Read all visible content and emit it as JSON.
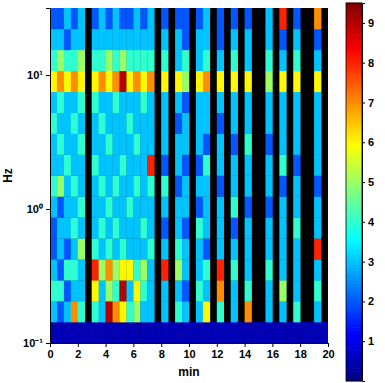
{
  "chart_data": {
    "type": "heatmap",
    "xlabel": "min",
    "ylabel": "Hz",
    "log": "y",
    "xlim": [
      0,
      20
    ],
    "xticks": [
      0,
      2,
      4,
      6,
      8,
      10,
      12,
      14,
      16,
      18,
      20
    ],
    "ylim": [
      0.1,
      31.623
    ],
    "yticks": [
      {
        "value": 0.1,
        "label": "10⁻¹"
      },
      {
        "value": 1,
        "label": "10⁰"
      },
      {
        "value": 10,
        "label": "10¹"
      }
    ],
    "x_bins": [
      0,
      0.5,
      1,
      1.5,
      2,
      2.5,
      3,
      3.5,
      4,
      4.5,
      5,
      5.5,
      6,
      6.5,
      7,
      7.5,
      8,
      8.5,
      9,
      9.5,
      10,
      10.5,
      11,
      11.5,
      12,
      12.5,
      13,
      13.5,
      14,
      14.5,
      15,
      15.5,
      16,
      16.5,
      17,
      17.5,
      18,
      18.5,
      19,
      19.5,
      20
    ],
    "y_bins": [
      0.1,
      0.1433,
      0.2054,
      0.2943,
      0.4217,
      0.6043,
      0.866,
      1.2409,
      1.7783,
      2.5483,
      3.6517,
      5.233,
      7.4989,
      10.746,
      15.399,
      22.067,
      31.623
    ],
    "values": [
      [
        0.5,
        3,
        4,
        3,
        2,
        2,
        3,
        4,
        3,
        3,
        4,
        3,
        6,
        4,
        3,
        2
      ],
      [
        0.5,
        2,
        4,
        2,
        3,
        3,
        2,
        5,
        3,
        4,
        3,
        4,
        7,
        5,
        3,
        2
      ],
      [
        0.5,
        3,
        2,
        4,
        2,
        3,
        3,
        3,
        4,
        3,
        3,
        3,
        6,
        4,
        2,
        3
      ],
      [
        0.5,
        7,
        3,
        4,
        3,
        4,
        3,
        4,
        3,
        3,
        4,
        3,
        7,
        4,
        3,
        2
      ],
      [
        0.5,
        4,
        3,
        3,
        5,
        3,
        4,
        3,
        3,
        4,
        3,
        4,
        6,
        5,
        3,
        3
      ],
      [
        0.5,
        null,
        null,
        null,
        null,
        null,
        null,
        null,
        null,
        null,
        null,
        null,
        null,
        null,
        null,
        null
      ],
      [
        0.5,
        4,
        6,
        8,
        4,
        3,
        3,
        3,
        4,
        3,
        3,
        4,
        6,
        4,
        3,
        2
      ],
      [
        0.5,
        3,
        3,
        5,
        3,
        4,
        3,
        4,
        3,
        3,
        4,
        3,
        7,
        4,
        3,
        3
      ],
      [
        0.5,
        9,
        5,
        7,
        4,
        3,
        4,
        3,
        3,
        4,
        3,
        3,
        6,
        5,
        3,
        2
      ],
      [
        0.5,
        7,
        4,
        5,
        3,
        4,
        3,
        4,
        3,
        3,
        3,
        4,
        7,
        4,
        3,
        3
      ],
      [
        0.5,
        6,
        9,
        6,
        4,
        3,
        3,
        3,
        4,
        3,
        3,
        3,
        9,
        5,
        3,
        2
      ],
      [
        0.5,
        4,
        3,
        6,
        3,
        3,
        4,
        3,
        3,
        3,
        4,
        3,
        6,
        4,
        3,
        2
      ],
      [
        0.5,
        5,
        6,
        4,
        3,
        3,
        3,
        4,
        3,
        4,
        3,
        3,
        7,
        4,
        3,
        3
      ],
      [
        0.5,
        3,
        4,
        5,
        3,
        4,
        3,
        3,
        3,
        3,
        3,
        4,
        6,
        4,
        3,
        2
      ],
      [
        0.5,
        3,
        3,
        3,
        4,
        3,
        3,
        4,
        8,
        3,
        3,
        3,
        7,
        4,
        3,
        3
      ],
      [
        0.5,
        null,
        null,
        null,
        null,
        null,
        null,
        null,
        null,
        null,
        null,
        null,
        null,
        null,
        null,
        null
      ],
      [
        0.5,
        3,
        3,
        8,
        3,
        2,
        3,
        4,
        2,
        3,
        3,
        3,
        6,
        4,
        3,
        2
      ],
      [
        0.5,
        null,
        null,
        null,
        null,
        null,
        null,
        null,
        null,
        null,
        null,
        null,
        null,
        null,
        null,
        null
      ],
      [
        0.5,
        4,
        3,
        5,
        4,
        3,
        3,
        2,
        3,
        3,
        2,
        3,
        6,
        3,
        3,
        2
      ],
      [
        0.5,
        3,
        2,
        3,
        3,
        2,
        3,
        3,
        2,
        3,
        3,
        2,
        5,
        4,
        2,
        2
      ],
      [
        0.5,
        null,
        null,
        null,
        null,
        null,
        null,
        null,
        null,
        null,
        null,
        null,
        null,
        null,
        null,
        null
      ],
      [
        0.5,
        3,
        4,
        3,
        3,
        4,
        2,
        3,
        2,
        3,
        3,
        3,
        6,
        3,
        3,
        2
      ],
      [
        0.5,
        6,
        3,
        4,
        2,
        3,
        3,
        3,
        4,
        2,
        3,
        3,
        7,
        4,
        3,
        3
      ],
      [
        0.5,
        null,
        null,
        null,
        null,
        null,
        null,
        null,
        null,
        null,
        null,
        null,
        null,
        null,
        null,
        null
      ],
      [
        0.5,
        4,
        7,
        8,
        3,
        3,
        3,
        2,
        3,
        3,
        2,
        3,
        6,
        3,
        2,
        2
      ],
      [
        0.5,
        null,
        null,
        null,
        null,
        null,
        null,
        null,
        null,
        null,
        null,
        null,
        null,
        null,
        null,
        null
      ],
      [
        0.5,
        3,
        3,
        4,
        3,
        2,
        4,
        3,
        3,
        2,
        3,
        3,
        6,
        4,
        3,
        2
      ],
      [
        0.5,
        null,
        null,
        null,
        null,
        null,
        null,
        null,
        null,
        null,
        null,
        null,
        null,
        null,
        null,
        null
      ],
      [
        0.5,
        7,
        4,
        3,
        3,
        3,
        2,
        3,
        3,
        4,
        3,
        3,
        6,
        3,
        3,
        2
      ],
      [
        0.5,
        null,
        null,
        null,
        null,
        null,
        null,
        null,
        null,
        null,
        null,
        null,
        null,
        null,
        null,
        null
      ],
      [
        0.5,
        null,
        null,
        null,
        null,
        null,
        null,
        null,
        null,
        null,
        null,
        null,
        null,
        null,
        null,
        null
      ],
      [
        0.5,
        3,
        3,
        4,
        3,
        3,
        2,
        3,
        3,
        2,
        3,
        3,
        5,
        4,
        3,
        3
      ],
      [
        0.5,
        null,
        null,
        null,
        null,
        null,
        null,
        null,
        null,
        null,
        null,
        null,
        null,
        null,
        null,
        null
      ],
      [
        0.5,
        3,
        5,
        3,
        3,
        3,
        3,
        2,
        4,
        3,
        3,
        3,
        6,
        3,
        2,
        8
      ],
      [
        0.5,
        null,
        null,
        null,
        null,
        null,
        null,
        null,
        null,
        null,
        null,
        null,
        null,
        null,
        null,
        null
      ],
      [
        0.5,
        4,
        3,
        3,
        3,
        4,
        3,
        3,
        2,
        3,
        3,
        3,
        6,
        4,
        3,
        2
      ],
      [
        0.5,
        null,
        null,
        null,
        null,
        null,
        null,
        null,
        null,
        null,
        null,
        null,
        null,
        null,
        null,
        null
      ],
      [
        0.5,
        null,
        null,
        null,
        null,
        null,
        null,
        null,
        null,
        null,
        null,
        null,
        null,
        null,
        null,
        null
      ],
      [
        0.5,
        3,
        4,
        3,
        8,
        3,
        3,
        2,
        3,
        3,
        3,
        3,
        6,
        3,
        2,
        7
      ],
      [
        0.5,
        null,
        null,
        null,
        null,
        null,
        null,
        null,
        null,
        null,
        null,
        null,
        null,
        null,
        null,
        null
      ]
    ],
    "colorbar_range": [
      0,
      9.5
    ],
    "colorbar_ticks": [
      1,
      2,
      3,
      4,
      5,
      6,
      7,
      8,
      9
    ]
  }
}
